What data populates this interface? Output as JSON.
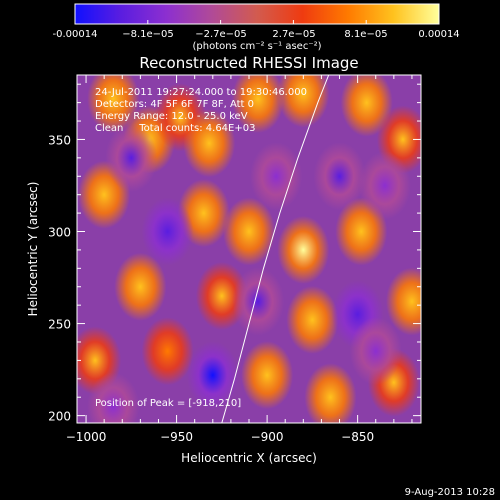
{
  "colorbar": {
    "tick_labels": [
      "-0.00014",
      "−8.1e−05",
      "−2.7e−05",
      "2.7e−05",
      "8.1e−05",
      "0.00014"
    ],
    "unit_label": "(photons cm⁻² s⁻¹ asec⁻²)",
    "range": [
      -0.00014,
      0.00014
    ],
    "colors": [
      "#1010ff",
      "#5a1de0",
      "#8c2fd0",
      "#b04a98",
      "#d25b4f",
      "#ef3b10",
      "#ff7a00",
      "#ffc21e",
      "#ffff9c"
    ]
  },
  "chart": {
    "title": "Reconstructed RHESSI Image",
    "info_lines": [
      "24-Jul-2011 19:27:24.000 to 19:30:46.000",
      "Detectors: 4F 5F 6F 7F 8F, Att 0",
      "Energy Range: 12.0 - 25.0 keV",
      "Clean     Total counts: 4.64E+03"
    ],
    "peak_label": "Position of Peak = [-918,210]",
    "footer_date": "9-Aug-2013 10:28"
  },
  "chart_data": {
    "type": "heatmap",
    "title": "Reconstructed RHESSI Image",
    "xlabel": "Heliocentric X (arcsec)",
    "ylabel": "Heliocentric Y (arcsec)",
    "xlim": [
      -1005,
      -815
    ],
    "ylim": [
      196,
      385
    ],
    "x_ticks": [
      -1000,
      -950,
      -900,
      -850
    ],
    "y_ticks": [
      200,
      250,
      300,
      350
    ],
    "x_tick_labels": [
      "−1000",
      "−950",
      "−900",
      "−850"
    ],
    "y_tick_labels": [
      "200",
      "250",
      "300",
      "350"
    ],
    "peak": [
      -918,
      210
    ],
    "limb_curve": [
      [
        -925,
        196
      ],
      [
        -918,
        220
      ],
      [
        -910,
        250
      ],
      [
        -902,
        280
      ],
      [
        -893,
        310
      ],
      [
        -883,
        340
      ],
      [
        -872,
        370
      ],
      [
        -866,
        385
      ]
    ],
    "blobs": [
      {
        "x": -985,
        "y": 372,
        "v": 0.0001
      },
      {
        "x": -965,
        "y": 350,
        "v": 0.00011
      },
      {
        "x": -948,
        "y": 362,
        "v": 9e-05
      },
      {
        "x": -932,
        "y": 348,
        "v": 0.00012
      },
      {
        "x": -905,
        "y": 372,
        "v": 0.00011
      },
      {
        "x": -880,
        "y": 375,
        "v": 0.0001
      },
      {
        "x": -845,
        "y": 370,
        "v": 0.00012
      },
      {
        "x": -825,
        "y": 350,
        "v": 9e-05
      },
      {
        "x": -990,
        "y": 320,
        "v": 0.00011
      },
      {
        "x": -935,
        "y": 310,
        "v": 0.00012
      },
      {
        "x": -910,
        "y": 300,
        "v": 0.0001
      },
      {
        "x": -880,
        "y": 290,
        "v": 0.00014
      },
      {
        "x": -848,
        "y": 300,
        "v": 0.00011
      },
      {
        "x": -970,
        "y": 270,
        "v": 0.0001
      },
      {
        "x": -925,
        "y": 265,
        "v": 9e-05
      },
      {
        "x": -875,
        "y": 252,
        "v": 0.00011
      },
      {
        "x": -820,
        "y": 262,
        "v": 0.0001
      },
      {
        "x": -995,
        "y": 230,
        "v": 9e-05
      },
      {
        "x": -955,
        "y": 235,
        "v": 8e-05
      },
      {
        "x": -900,
        "y": 222,
        "v": 0.0001
      },
      {
        "x": -865,
        "y": 210,
        "v": 0.00011
      },
      {
        "x": -830,
        "y": 218,
        "v": 9e-05
      },
      {
        "x": -975,
        "y": 340,
        "v": -9e-05
      },
      {
        "x": -955,
        "y": 300,
        "v": -0.0001
      },
      {
        "x": -895,
        "y": 330,
        "v": -8e-05
      },
      {
        "x": -860,
        "y": 330,
        "v": -9e-05
      },
      {
        "x": -835,
        "y": 325,
        "v": -7e-05
      },
      {
        "x": -930,
        "y": 222,
        "v": -0.00014
      },
      {
        "x": -905,
        "y": 262,
        "v": -9e-05
      },
      {
        "x": -850,
        "y": 255,
        "v": -0.0001
      },
      {
        "x": -840,
        "y": 235,
        "v": -8e-05
      },
      {
        "x": -985,
        "y": 205,
        "v": -7e-05
      }
    ]
  }
}
